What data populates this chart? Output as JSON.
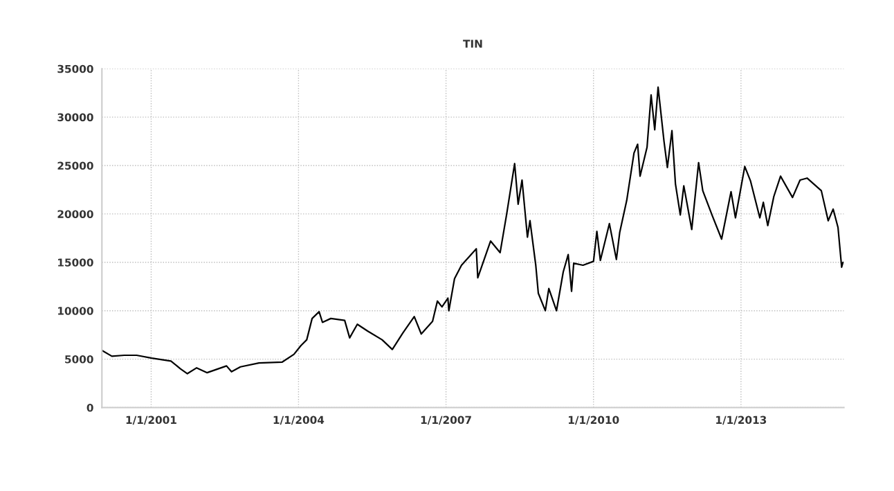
{
  "chart_data": {
    "type": "line",
    "title": "TIN",
    "x": [
      "2000-01-01",
      "2000-03-15",
      "2000-06-15",
      "2000-09-15",
      "2001-01-05",
      "2001-05-28",
      "2001-08-07",
      "2001-09-27",
      "2001-12-05",
      "2002-02-21",
      "2002-07-15",
      "2002-08-21",
      "2002-10-26",
      "2003-03-13",
      "2003-09-02",
      "2003-11-28",
      "2004-01-19",
      "2004-03-02",
      "2004-04-11",
      "2004-06-02",
      "2004-06-27",
      "2004-08-28",
      "2004-12-09",
      "2005-01-15",
      "2005-03-13",
      "2005-05-28",
      "2005-09-13",
      "2005-11-28",
      "2006-02-14",
      "2006-05-10",
      "2006-07-01",
      "2006-09-23",
      "2006-10-29",
      "2006-12-02",
      "2007-01-15",
      "2007-01-22",
      "2007-03-05",
      "2007-04-26",
      "2007-08-14",
      "2007-08-25",
      "2007-11-28",
      "2008-02-07",
      "2008-03-27",
      "2008-05-25",
      "2008-06-20",
      "2008-07-19",
      "2008-08-28",
      "2008-09-16",
      "2008-10-29",
      "2008-11-17",
      "2009-01-08",
      "2009-02-03",
      "2009-04-01",
      "2009-05-21",
      "2009-06-27",
      "2009-07-22",
      "2009-08-07",
      "2009-10-15",
      "2010-01-01",
      "2010-01-26",
      "2010-02-21",
      "2010-04-29",
      "2010-06-20",
      "2010-07-15",
      "2010-09-05",
      "2010-10-29",
      "2010-11-25",
      "2010-12-13",
      "2011-02-03",
      "2011-03-05",
      "2011-04-01",
      "2011-04-26",
      "2011-06-09",
      "2011-07-04",
      "2011-08-07",
      "2011-09-02",
      "2011-10-08",
      "2011-11-03",
      "2012-01-01",
      "2012-02-21",
      "2012-03-23",
      "2012-06-02",
      "2012-08-10",
      "2012-10-19",
      "2012-11-21",
      "2013-01-29",
      "2013-03-13",
      "2013-05-21",
      "2013-06-16",
      "2013-07-19",
      "2013-09-02",
      "2013-10-22",
      "2014-01-19",
      "2014-03-16",
      "2014-05-07",
      "2014-08-21",
      "2014-10-11",
      "2014-11-17",
      "2014-12-23",
      "2015-01-19",
      "2015-01-29"
    ],
    "series": [
      {
        "color": "#000000",
        "values": [
          5900,
          5300,
          5400,
          5400,
          5100,
          4800,
          4000,
          3500,
          4100,
          3600,
          4300,
          3700,
          4200,
          4600,
          4700,
          5500,
          6400,
          7000,
          9200,
          9900,
          8800,
          9200,
          9000,
          7200,
          8600,
          7900,
          7000,
          6000,
          7700,
          9400,
          7600,
          8900,
          11000,
          10400,
          11300,
          10000,
          13300,
          14700,
          16400,
          13400,
          17200,
          16000,
          20000,
          25200,
          21000,
          23500,
          17600,
          19300,
          14700,
          11800,
          10000,
          12300,
          10000,
          14000,
          15800,
          12000,
          14900,
          14700,
          15100,
          18200,
          15200,
          19000,
          15300,
          18100,
          21400,
          26300,
          27200,
          23900,
          26900,
          32300,
          28700,
          33100,
          27500,
          24800,
          28600,
          23100,
          19900,
          22900,
          18400,
          25300,
          22400,
          19800,
          17400,
          22300,
          19600,
          24900,
          23400,
          19600,
          21200,
          18800,
          21800,
          23900,
          21700,
          23500,
          23700,
          22400,
          19300,
          20500,
          18600,
          14500,
          15000
        ]
      }
    ],
    "xlim": [
      "2000-01-01",
      "2015-02-05"
    ],
    "xticks": [
      {
        "value": "2001-01-01",
        "label": "1/1/2001"
      },
      {
        "value": "2004-01-01",
        "label": "1/1/2004"
      },
      {
        "value": "2007-01-01",
        "label": "1/1/2007"
      },
      {
        "value": "2010-01-01",
        "label": "1/1/2010"
      },
      {
        "value": "2013-01-01",
        "label": "1/1/2013"
      }
    ],
    "ylim": [
      0,
      35000
    ],
    "yticks": [
      0,
      5000,
      10000,
      15000,
      20000,
      25000,
      30000,
      35000
    ],
    "grid": true,
    "line_style": "solid"
  }
}
